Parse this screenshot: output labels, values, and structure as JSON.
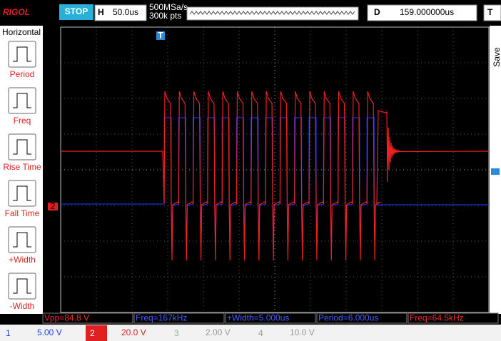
{
  "header": {
    "brand": "RIGOL",
    "status": "STOP",
    "timebase_label": "H",
    "timebase": "50.0us",
    "sample_rate": "500MSa/s",
    "memory_depth": "300k pts",
    "delay_label": "D",
    "delay": "159.000000us",
    "trigger_label": "T"
  },
  "menu": {
    "title": "Horizontal",
    "items": [
      "Period",
      "Freq",
      "Rise Time",
      "Fall Time",
      "+Width",
      "-Width"
    ]
  },
  "side_tab": "Save",
  "markers": {
    "trigger": "T",
    "channel2": "2"
  },
  "measurements": [
    {
      "text": "Vpp=84.8 V",
      "channel": "2"
    },
    {
      "text": "Freq=167kHz",
      "channel": "1"
    },
    {
      "text": "+Width=5.000us",
      "channel": "1"
    },
    {
      "text": "Period=6.000us",
      "channel": "1"
    },
    {
      "text": "Freq=64.5kHz",
      "channel": "2"
    }
  ],
  "channels": [
    {
      "number": "1",
      "scale": "5.00 V"
    },
    {
      "number": "2",
      "scale": "20.0 V"
    },
    {
      "number": "3",
      "scale": "2.00 V"
    },
    {
      "number": "4",
      "scale": "10.0 V"
    }
  ]
}
